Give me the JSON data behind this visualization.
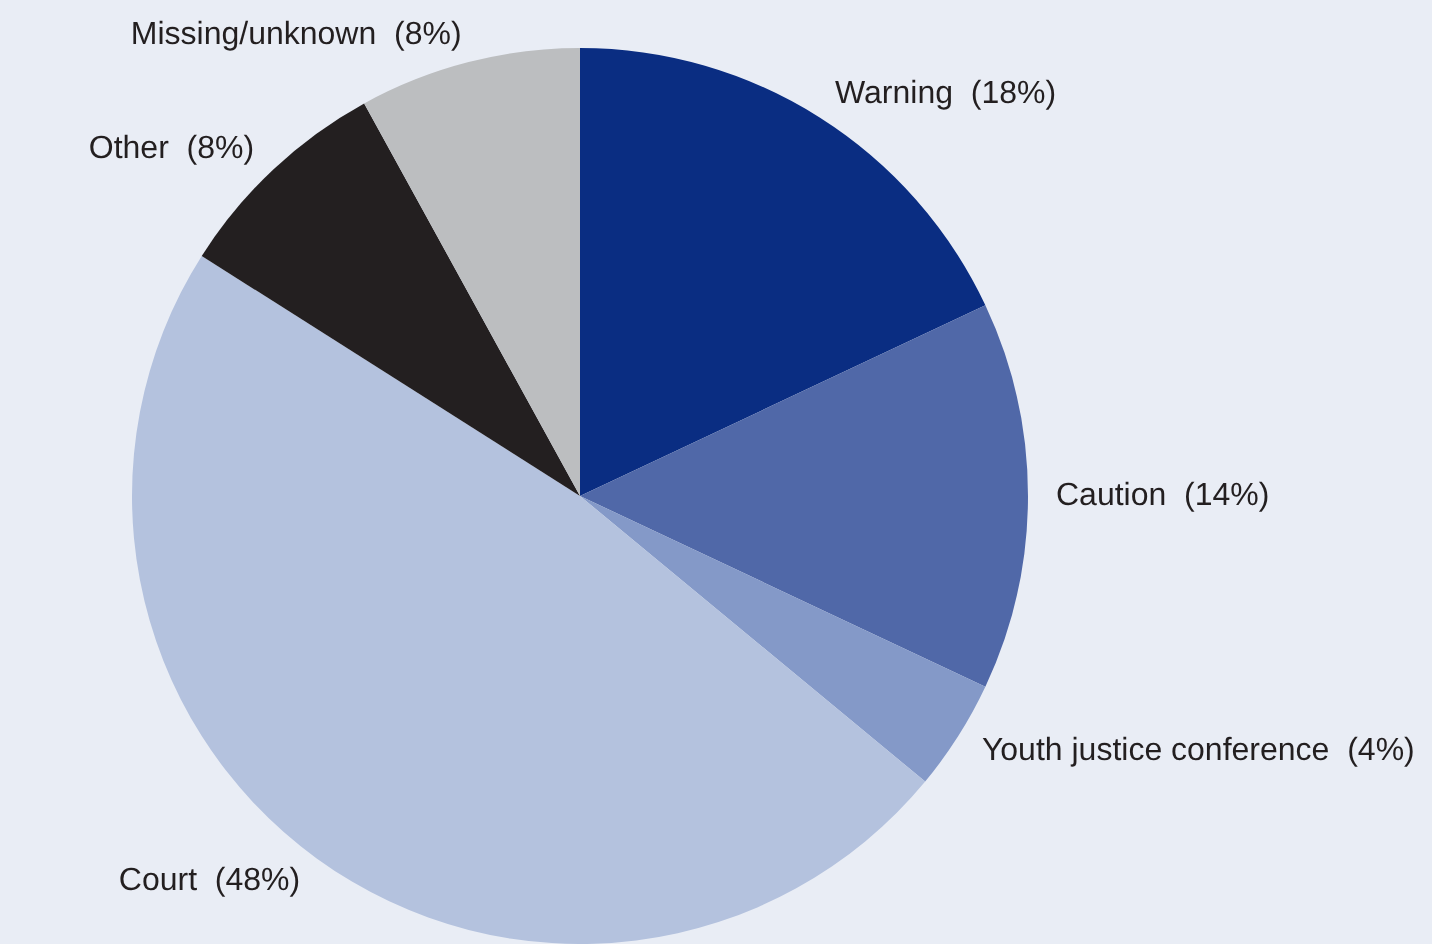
{
  "chart_data": {
    "type": "pie",
    "categories": [
      "Warning",
      "Caution",
      "Youth justice conference",
      "Court",
      "Other",
      "Missing/unknown"
    ],
    "values": [
      18,
      14,
      4,
      48,
      8,
      8
    ],
    "value_labels": [
      "(18%)",
      "(14%)",
      "(4%)",
      "(48%)",
      "(8%)",
      "(8%)"
    ],
    "colors": [
      "#0a2d82",
      "#5068a8",
      "#8499c8",
      "#b4c2de",
      "#231f20",
      "#bcbec0"
    ],
    "legend": false
  }
}
